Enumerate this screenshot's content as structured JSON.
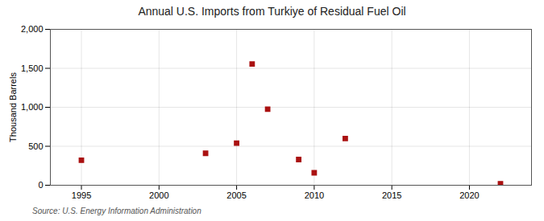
{
  "chart_data": {
    "type": "scatter",
    "title": "Annual U.S. Imports from Turkiye of Residual Fuel Oil",
    "ylabel": "Thousand Barrels",
    "annotation": "Source: U.S. Energy Information Administration",
    "x": [
      1995,
      2003,
      2005,
      2006,
      2007,
      2009,
      2010,
      2012,
      2022
    ],
    "values": [
      320,
      410,
      540,
      1555,
      975,
      330,
      160,
      600,
      20
    ],
    "color": "#aa1111",
    "marker": "square",
    "xlim": [
      1993,
      2024
    ],
    "ylim": [
      0,
      2000
    ],
    "xticks": [
      1995,
      2000,
      2005,
      2010,
      2015,
      2020
    ],
    "yticks": [
      0,
      500,
      {
        "value": 1000,
        "label": "1,000"
      },
      {
        "value": 1500,
        "label": "1,500"
      },
      {
        "value": 2000,
        "label": "2,000"
      }
    ],
    "grid": true
  }
}
